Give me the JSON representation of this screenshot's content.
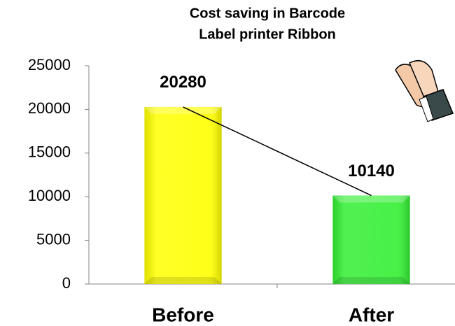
{
  "chart_data": {
    "type": "bar",
    "title": [
      "Cost saving in Barcode",
      "Label printer Ribbon"
    ],
    "categories": [
      "Before",
      "After"
    ],
    "values": [
      20280,
      10140
    ],
    "colors": [
      "#ffff00",
      "#33ee33"
    ],
    "ylim": [
      0,
      25000
    ],
    "yticks": [
      0,
      5000,
      10000,
      15000,
      20000,
      25000
    ],
    "grid": false,
    "connector_line": true
  }
}
